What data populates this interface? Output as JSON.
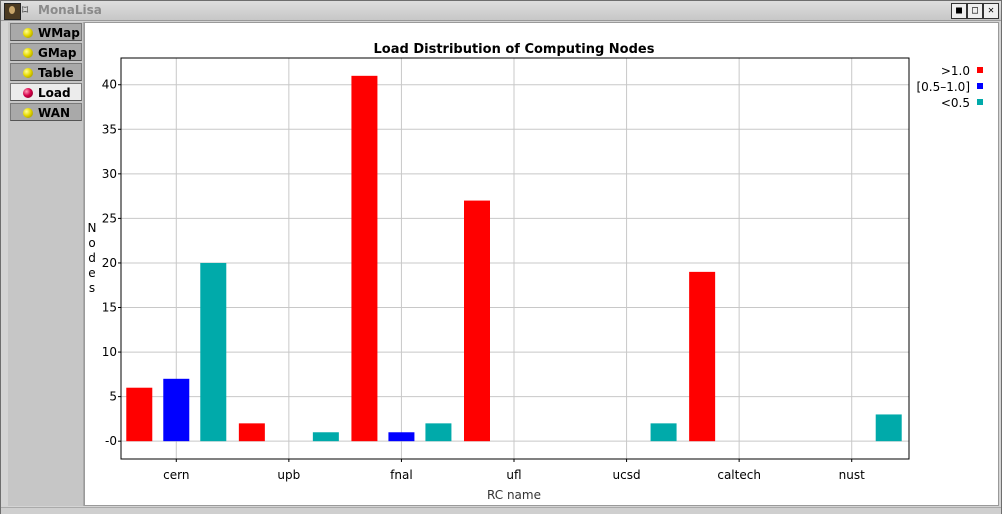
{
  "window": {
    "title": "MonaLisa",
    "controls": [
      "■",
      "□",
      "✕"
    ]
  },
  "tabs": [
    {
      "label": "WMap",
      "active": false
    },
    {
      "label": "GMap",
      "active": false
    },
    {
      "label": "Table",
      "active": false
    },
    {
      "label": "Load",
      "active": true
    },
    {
      "label": "WAN",
      "active": false
    }
  ],
  "chart_data": {
    "type": "bar",
    "title": "Load Distribution of Computing Nodes",
    "xlabel": "RC name",
    "ylabel": "Nodes",
    "categories": [
      "cern",
      "upb",
      "fnal",
      "ufl",
      "ucsd",
      "caltech",
      "nust"
    ],
    "series": [
      {
        "name": ">1.0",
        "color": "#ff0000",
        "values": [
          6,
          2,
          41,
          27,
          0,
          19,
          0
        ]
      },
      {
        "name": "[0.5–1.0]",
        "color": "#0000ff",
        "values": [
          7,
          0,
          1,
          0,
          0,
          0,
          0
        ]
      },
      {
        "name": "<0.5",
        "color": "#00aaaa",
        "values": [
          20,
          1,
          2,
          0,
          2,
          0,
          3
        ]
      }
    ],
    "y_ticks": [
      "-0",
      "5",
      "10",
      "15",
      "20",
      "25",
      "30",
      "35",
      "40"
    ],
    "ylim": [
      -2,
      43
    ],
    "grid": true,
    "legend_position": "top-right"
  }
}
